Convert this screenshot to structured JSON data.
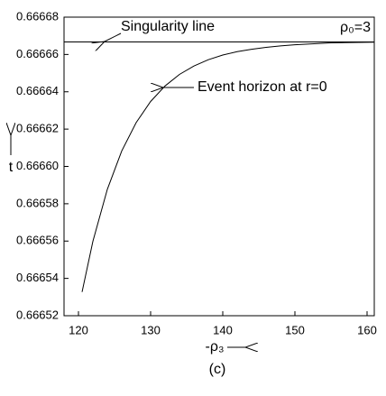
{
  "chart_data": {
    "type": "line",
    "xlabel": "-ρ₃",
    "ylabel": "t",
    "caption": "(c)",
    "parameter_label": "ρ₀=3",
    "x": [
      120.5,
      122,
      124,
      126,
      128,
      130,
      132,
      134,
      136,
      138,
      140,
      142,
      144,
      146,
      148,
      150,
      155,
      161
    ],
    "series": [
      {
        "color": "#000000",
        "values": [
          0.6665327,
          0.6665599,
          0.6665877,
          0.6666083,
          0.6666235,
          0.6666348,
          0.6666431,
          0.6666493,
          0.6666538,
          0.6666572,
          0.6666597,
          0.6666615,
          0.6666628,
          0.6666638,
          0.6666646,
          0.6666652,
          0.6666662,
          0.6666666
        ]
      }
    ],
    "singularity": {
      "label": "Singularity line",
      "value": 0.6666667
    },
    "event_horizon_label": "Event horizon at r=0",
    "xlim": [
      118,
      161
    ],
    "ylim": [
      0.66652,
      0.66668
    ],
    "xticks": [
      120,
      130,
      140,
      150,
      160
    ],
    "yticks": [
      0.66652,
      0.66654,
      0.66656,
      0.66658,
      0.6666,
      0.66662,
      0.66664,
      0.66666,
      0.66668
    ],
    "ytick_labels_fixed": 5
  }
}
